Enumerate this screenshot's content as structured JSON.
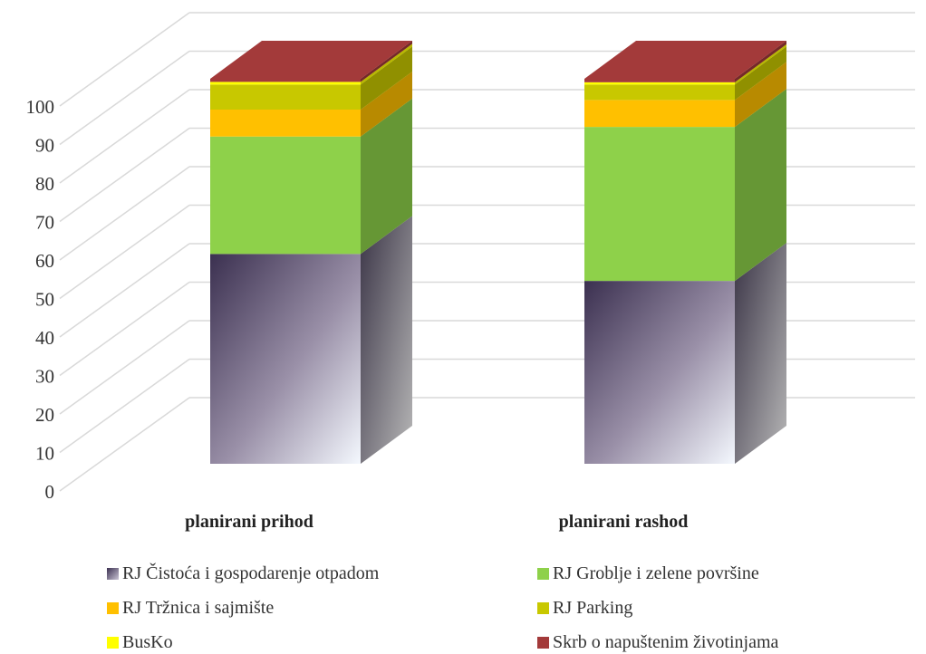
{
  "chart_data": {
    "type": "bar",
    "stacked": true,
    "three_d": true,
    "categories": [
      "planirani prihod",
      "planirani rashod"
    ],
    "series": [
      {
        "name": "RJ Čistoća i gospodarenje otpadom",
        "values": [
          54.5,
          47.5
        ],
        "color": "#6b5f7e"
      },
      {
        "name": "RJ Groblje i zelene površine",
        "values": [
          30.5,
          40.0
        ],
        "color": "#8ed14a"
      },
      {
        "name": "RJ Tržnica i sajmište",
        "values": [
          7.0,
          7.0
        ],
        "color": "#ffc000"
      },
      {
        "name": "RJ Parking",
        "values": [
          6.5,
          4.0
        ],
        "color": "#c8c800"
      },
      {
        "name": "BusKo",
        "values": [
          0.7,
          0.6
        ],
        "color": "#ffff00"
      },
      {
        "name": "Skrb o napuštenim životinjama",
        "values": [
          0.8,
          0.9
        ],
        "color": "#a33a3a"
      }
    ],
    "y_ticks": [
      "0",
      "10",
      "20",
      "30",
      "40",
      "50",
      "60",
      "70",
      "80",
      "90",
      "100"
    ],
    "ylim": [
      0,
      100
    ],
    "grid": true,
    "legend_position": "bottom",
    "title": "",
    "xlabel": "",
    "ylabel": ""
  }
}
